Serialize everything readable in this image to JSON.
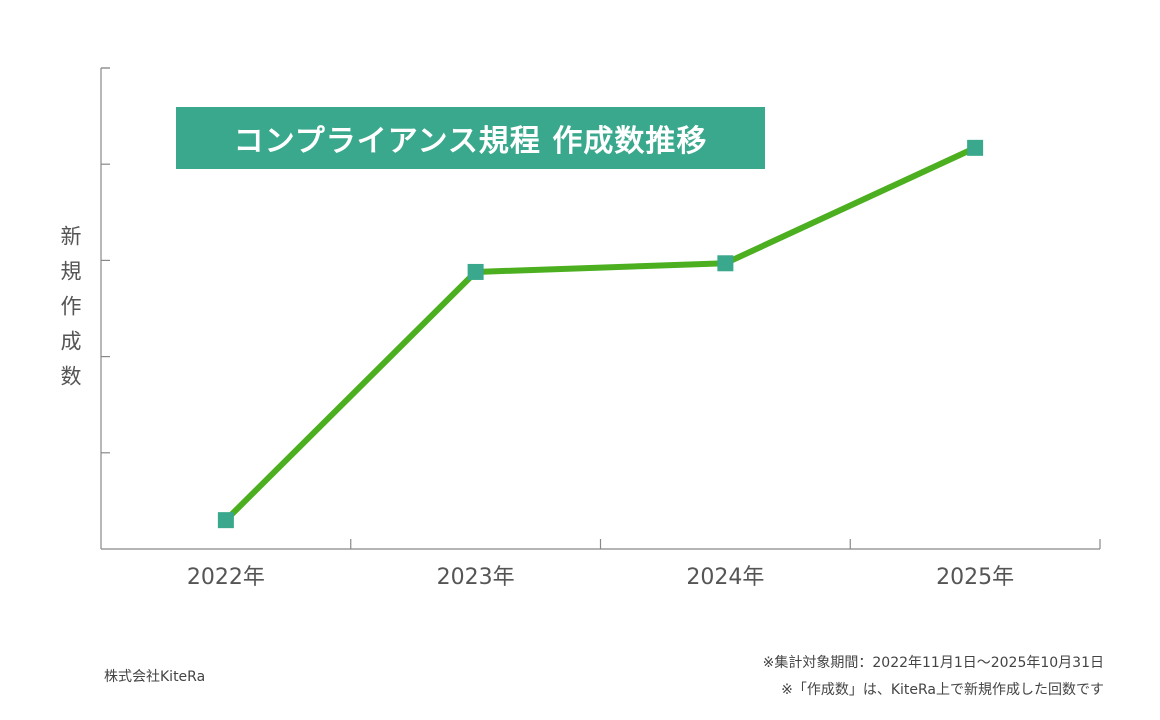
{
  "chart_data": {
    "type": "line",
    "title": "コンプライアンス規程 作成数推移",
    "ylabel": "新規作成数",
    "xlabel": "",
    "categories": [
      "2022年",
      "2023年",
      "2024年",
      "2025年"
    ],
    "series": [
      {
        "values": [
          0.3,
          2.88,
          2.97,
          4.17
        ]
      }
    ],
    "ylim": [
      0,
      5
    ],
    "yticks_labeled": false,
    "grid": false,
    "legend": "none",
    "colors": {
      "line": "#4caf1f",
      "marker": "#3aa88c",
      "title_bg": "#3aa88c",
      "axis": "#888888",
      "text": "#555555"
    }
  },
  "footer": {
    "company": "株式会社KiteRa",
    "note_period": "※集計対象期間：2022年11月1日〜2025年10月31日",
    "note_definition": "※「作成数」は、KiteRa上で新規作成した回数です"
  }
}
